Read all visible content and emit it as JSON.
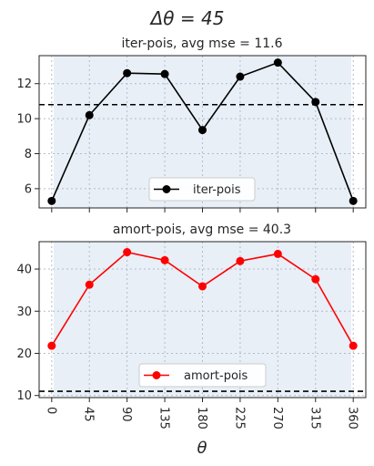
{
  "suptitle": "Δθ = 45",
  "xlabel": "θ",
  "chart_data": [
    {
      "type": "line",
      "title": "iter-pois, avg mse = 11.6",
      "categories": [
        "0",
        "45",
        "90",
        "135",
        "180",
        "225",
        "270",
        "315",
        "360"
      ],
      "x": [
        0,
        45,
        90,
        135,
        180,
        225,
        270,
        315,
        360
      ],
      "series": [
        {
          "name": "iter-pois",
          "color": "#000000",
          "values": [
            5.3,
            10.2,
            12.6,
            12.55,
            9.35,
            12.4,
            13.2,
            10.95,
            5.3
          ]
        }
      ],
      "hline": 10.8,
      "xlim": [
        -15,
        375
      ],
      "ylim": [
        4.9,
        13.6
      ],
      "yticks": [
        6,
        8,
        10,
        12
      ],
      "legend": "bottom-center",
      "grid": true
    },
    {
      "type": "line",
      "title": "amort-pois, avg mse = 40.3",
      "categories": [
        "0",
        "45",
        "90",
        "135",
        "180",
        "225",
        "270",
        "315",
        "360"
      ],
      "x": [
        0,
        45,
        90,
        135,
        180,
        225,
        270,
        315,
        360
      ],
      "series": [
        {
          "name": "amort-pois",
          "color": "#ff0000",
          "values": [
            21.8,
            36.3,
            44.0,
            42.1,
            35.9,
            41.9,
            43.6,
            37.6,
            21.8
          ]
        }
      ],
      "hline": 11.0,
      "xlim": [
        -15,
        375
      ],
      "ylim": [
        9.5,
        46.5
      ],
      "yticks": [
        10,
        20,
        30,
        40
      ],
      "legend": "bottom-center",
      "grid": true
    }
  ]
}
